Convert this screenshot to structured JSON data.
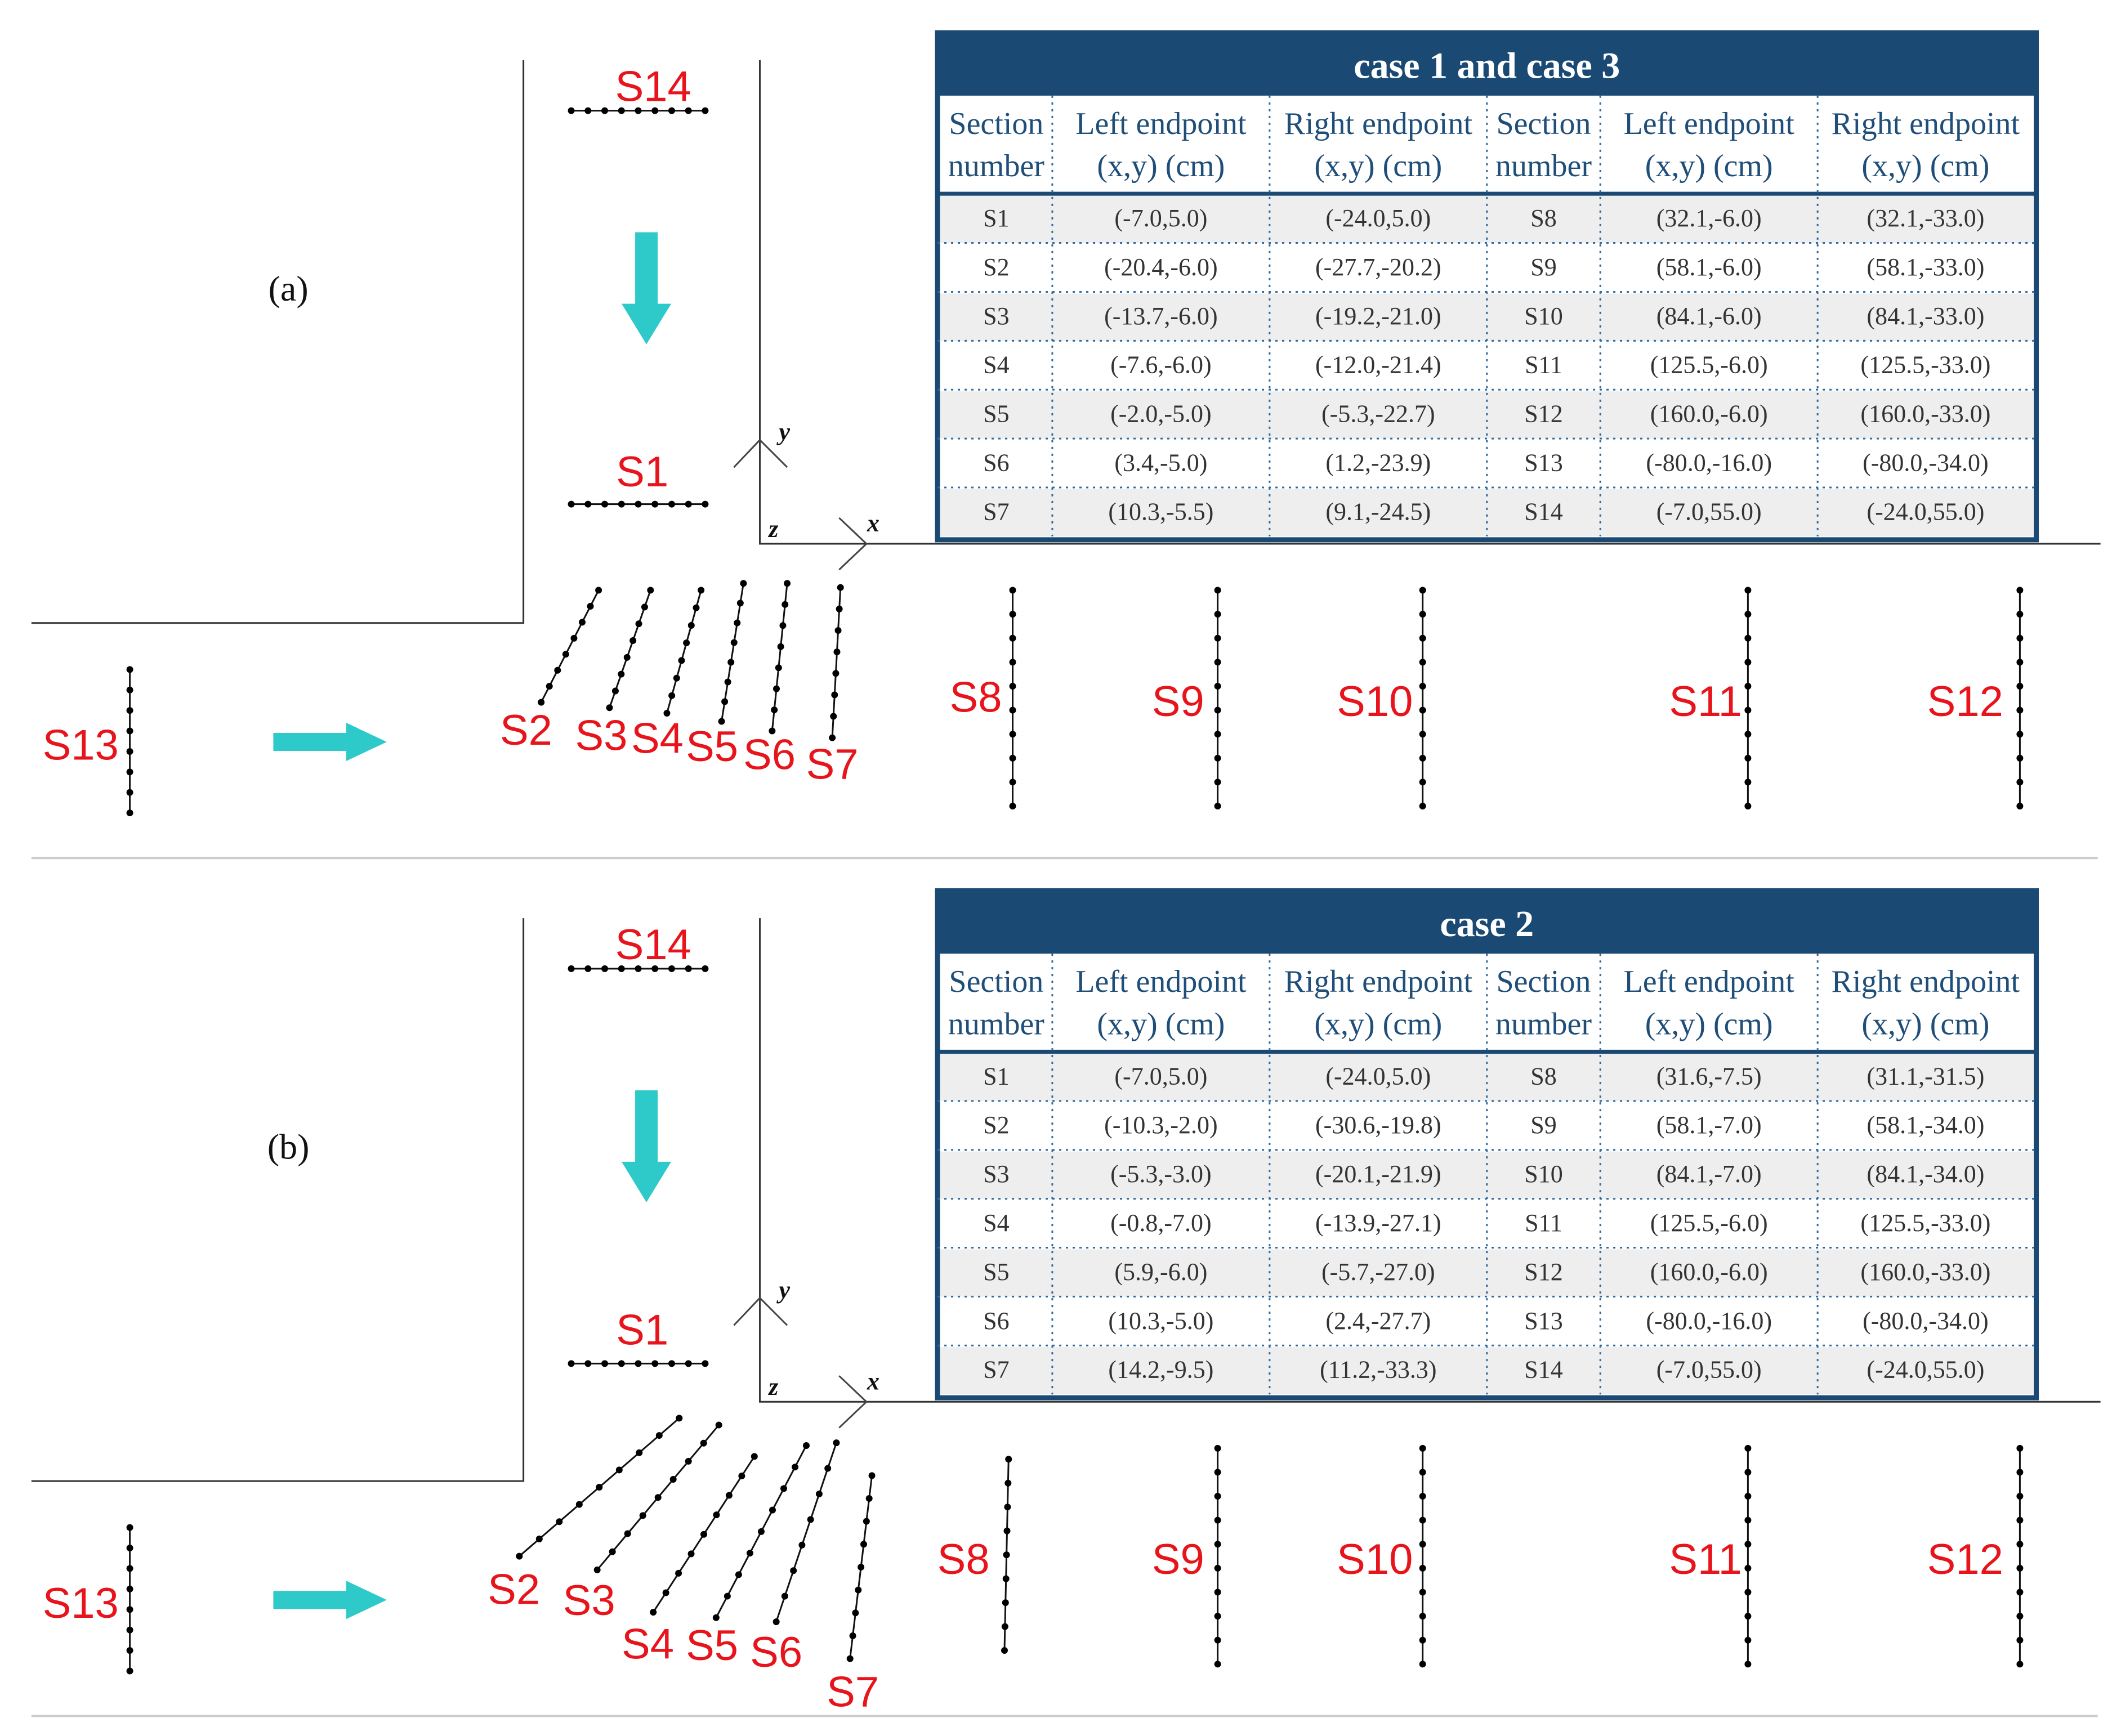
{
  "panels": [
    {
      "label": "(a)",
      "table": {
        "title": "case 1 and case 3",
        "headers": [
          [
            "Section",
            "number"
          ],
          [
            "Left endpoint",
            "(x,y) (cm)"
          ],
          [
            "Right endpoint",
            "(x,y) (cm)"
          ],
          [
            "Section",
            "number"
          ],
          [
            "Left endpoint",
            "(x,y) (cm)"
          ],
          [
            "Right endpoint",
            "(x,y) (cm)"
          ]
        ],
        "rows": [
          [
            "S1",
            "(-7.0,5.0)",
            "(-24.0,5.0)",
            "S8",
            "(32.1,-6.0)",
            "(32.1,-33.0)"
          ],
          [
            "S2",
            "(-20.4,-6.0)",
            "(-27.7,-20.2)",
            "S9",
            "(58.1,-6.0)",
            "(58.1,-33.0)"
          ],
          [
            "S3",
            "(-13.7,-6.0)",
            "(-19.2,-21.0)",
            "S10",
            "(84.1,-6.0)",
            "(84.1,-33.0)"
          ],
          [
            "S4",
            "(-7.6,-6.0)",
            "(-12.0,-21.4)",
            "S11",
            "(125.5,-6.0)",
            "(125.5,-33.0)"
          ],
          [
            "S5",
            "(-2.0,-5.0)",
            "(-5.3,-22.7)",
            "S12",
            "(160.0,-6.0)",
            "(160.0,-33.0)"
          ],
          [
            "S6",
            "(3.4,-5.0)",
            "(1.2,-23.9)",
            "S13",
            "(-80.0,-16.0)",
            "(-80.0,-34.0)"
          ],
          [
            "S7",
            "(10.3,-5.5)",
            "(9.1,-24.5)",
            "S14",
            "(-7.0,55.0)",
            "(-24.0,55.0)"
          ]
        ]
      },
      "axes": {
        "x": "x",
        "y": "y",
        "z": "z"
      },
      "sections": [
        "S1",
        "S2",
        "S3",
        "S4",
        "S5",
        "S6",
        "S7",
        "S8",
        "S9",
        "S10",
        "S11",
        "S12",
        "S13",
        "S14"
      ]
    },
    {
      "label": "(b)",
      "table": {
        "title": "case 2",
        "headers": [
          [
            "Section",
            "number"
          ],
          [
            "Left endpoint",
            "(x,y) (cm)"
          ],
          [
            "Right endpoint",
            "(x,y) (cm)"
          ],
          [
            "Section",
            "number"
          ],
          [
            "Left endpoint",
            "(x,y) (cm)"
          ],
          [
            "Right endpoint",
            "(x,y) (cm)"
          ]
        ],
        "rows": [
          [
            "S1",
            "(-7.0,5.0)",
            "(-24.0,5.0)",
            "S8",
            "(31.6,-7.5)",
            "(31.1,-31.5)"
          ],
          [
            "S2",
            "(-10.3,-2.0)",
            "(-30.6,-19.8)",
            "S9",
            "(58.1,-7.0)",
            "(58.1,-34.0)"
          ],
          [
            "S3",
            "(-5.3,-3.0)",
            "(-20.1,-21.9)",
            "S10",
            "(84.1,-7.0)",
            "(84.1,-34.0)"
          ],
          [
            "S4",
            "(-0.8,-7.0)",
            "(-13.9,-27.1)",
            "S11",
            "(125.5,-6.0)",
            "(125.5,-33.0)"
          ],
          [
            "S5",
            "(5.9,-6.0)",
            "(-5.7,-27.0)",
            "S12",
            "(160.0,-6.0)",
            "(160.0,-33.0)"
          ],
          [
            "S6",
            "(10.3,-5.0)",
            "(2.4,-27.7)",
            "S13",
            "(-80.0,-16.0)",
            "(-80.0,-34.0)"
          ],
          [
            "S7",
            "(14.2,-9.5)",
            "(11.2,-33.3)",
            "S14",
            "(-7.0,55.0)",
            "(-24.0,55.0)"
          ]
        ]
      },
      "axes": {
        "x": "x",
        "y": "y",
        "z": "z"
      },
      "sections": [
        "S1",
        "S2",
        "S3",
        "S4",
        "S5",
        "S6",
        "S7",
        "S8",
        "S9",
        "S10",
        "S11",
        "S12",
        "S13",
        "S14"
      ]
    }
  ],
  "colors": {
    "table_header": "#1a4a73",
    "header_text": "#1f4e79",
    "section_label": "#e8141c",
    "arrow": "#2ec9c9",
    "row_shade": "#eeeeee"
  }
}
